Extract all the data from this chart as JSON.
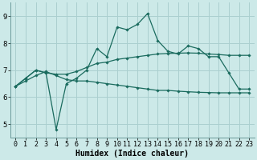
{
  "xlabel": "Humidex (Indice chaleur)",
  "x_values": [
    0,
    1,
    2,
    3,
    4,
    5,
    6,
    7,
    8,
    9,
    10,
    11,
    12,
    13,
    14,
    15,
    16,
    17,
    18,
    19,
    20,
    21,
    22,
    23
  ],
  "line1": [
    6.4,
    6.7,
    7.0,
    6.9,
    4.8,
    6.5,
    6.7,
    7.0,
    7.8,
    7.5,
    8.6,
    8.5,
    8.7,
    9.1,
    8.1,
    7.7,
    7.6,
    7.9,
    7.8,
    7.5,
    7.5,
    6.9,
    6.3,
    6.3
  ],
  "line2": [
    6.4,
    6.7,
    7.0,
    6.9,
    6.85,
    6.85,
    6.95,
    7.1,
    7.25,
    7.3,
    7.4,
    7.45,
    7.5,
    7.55,
    7.6,
    7.62,
    7.63,
    7.64,
    7.63,
    7.6,
    7.58,
    7.55,
    7.55,
    7.55
  ],
  "line3": [
    6.4,
    6.6,
    6.8,
    6.95,
    6.8,
    6.65,
    6.6,
    6.6,
    6.55,
    6.5,
    6.45,
    6.4,
    6.35,
    6.3,
    6.25,
    6.25,
    6.22,
    6.2,
    6.18,
    6.17,
    6.16,
    6.16,
    6.16,
    6.16
  ],
  "bg_color": "#cce9e8",
  "grid_color": "#aacfcf",
  "line_color": "#1a6b5e",
  "ylim": [
    4.5,
    9.5
  ],
  "xlim": [
    -0.5,
    23.5
  ],
  "yticks": [
    5,
    6,
    7,
    8,
    9
  ],
  "xticks": [
    0,
    1,
    2,
    3,
    4,
    5,
    6,
    7,
    8,
    9,
    10,
    11,
    12,
    13,
    14,
    15,
    16,
    17,
    18,
    19,
    20,
    21,
    22,
    23
  ],
  "tick_fontsize": 6.0,
  "label_fontsize": 7.0
}
